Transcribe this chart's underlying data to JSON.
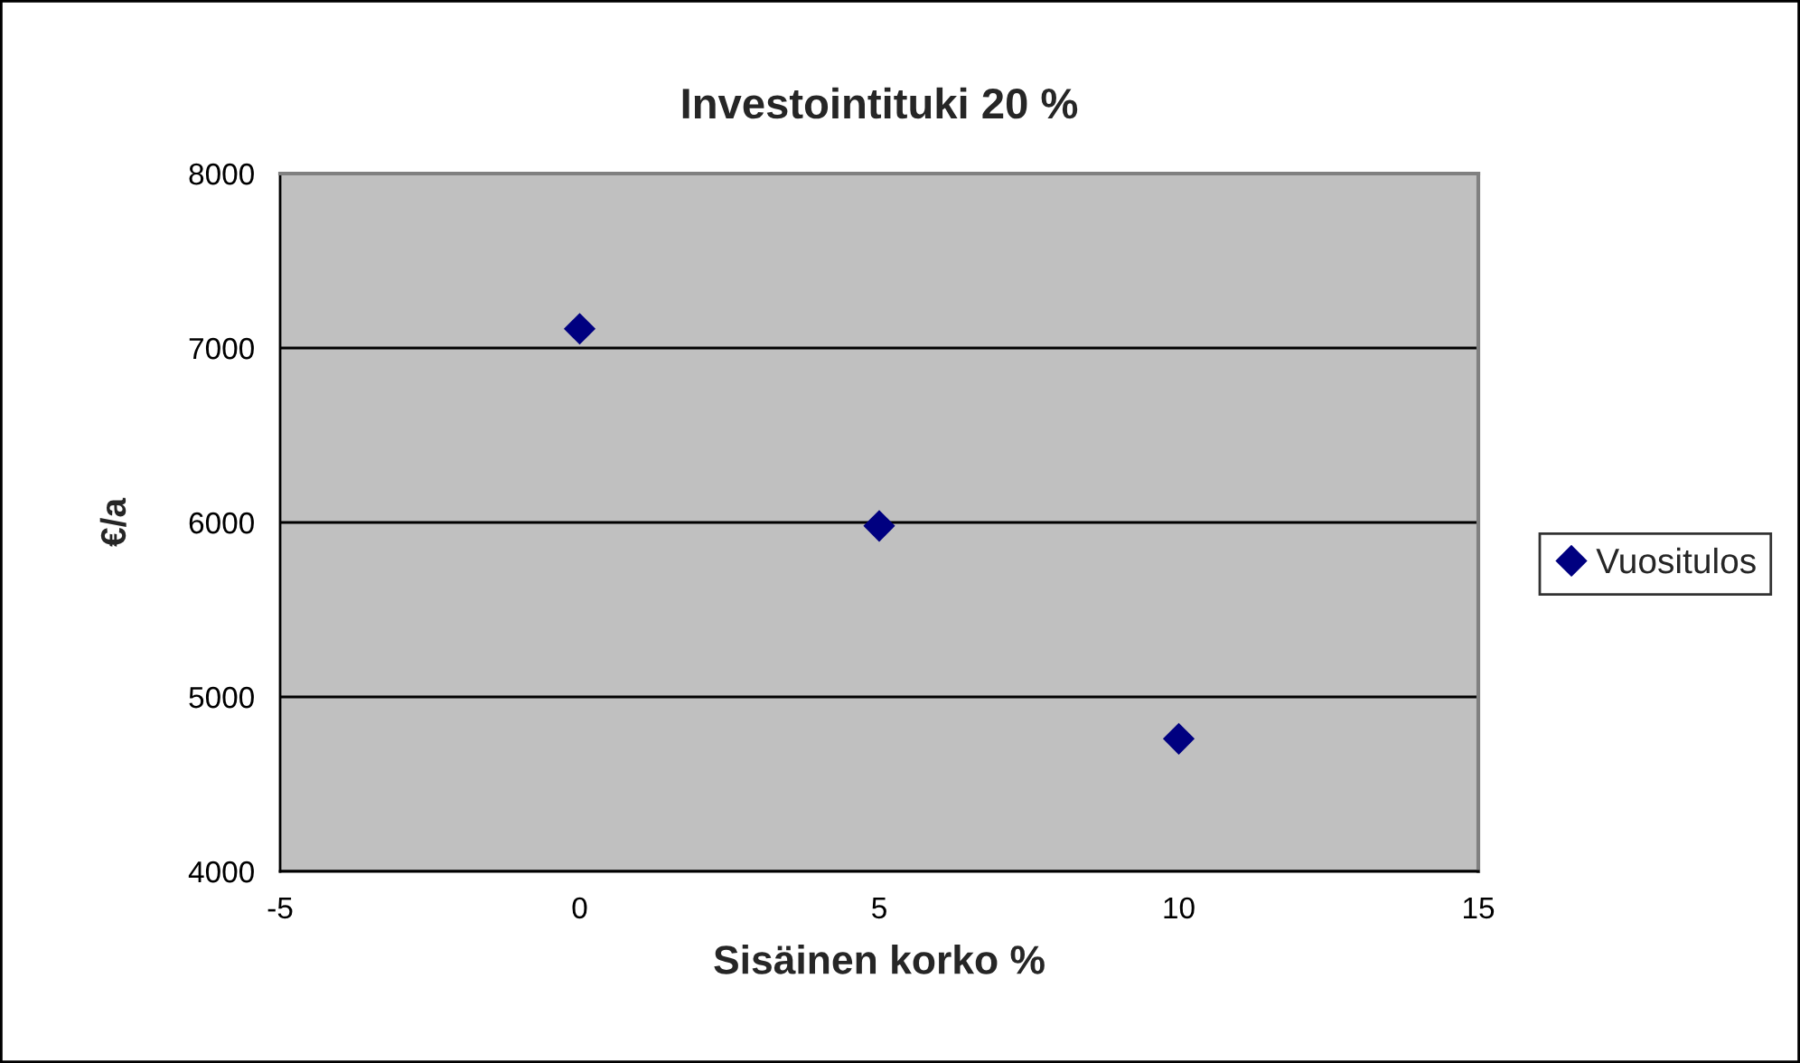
{
  "chart_data": {
    "type": "scatter",
    "title": "Investointituki 20 %",
    "xlabel": "Sisäinen korko %",
    "ylabel": "€/a",
    "x": [
      0,
      5,
      10
    ],
    "series": [
      {
        "name": "Vuositulos",
        "color": "#000080",
        "values": [
          7110,
          5980,
          4760
        ]
      }
    ],
    "xlim": [
      -5,
      15
    ],
    "xticks": [
      -5,
      0,
      5,
      10,
      15
    ],
    "ylim": [
      4000,
      8000
    ],
    "yticks": [
      4000,
      5000,
      6000,
      7000,
      8000
    ],
    "grid": "y",
    "legend": "right",
    "marker": "diamond"
  }
}
